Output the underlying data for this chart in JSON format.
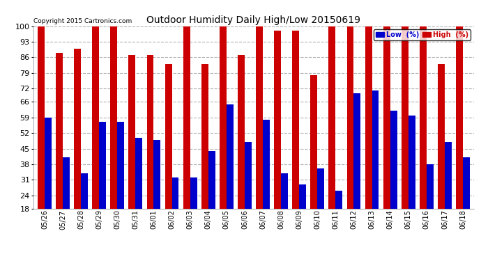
{
  "title": "Outdoor Humidity Daily High/Low 20150619",
  "copyright": "Copyright 2015 Cartronics.com",
  "background_color": "#ffffff",
  "plot_bg_color": "#ffffff",
  "legend_low_label": "Low  (%)",
  "legend_high_label": "High  (%)",
  "low_color": "#0000cc",
  "high_color": "#cc0000",
  "ylim": [
    18,
    100
  ],
  "yticks": [
    18,
    24,
    31,
    38,
    45,
    52,
    59,
    66,
    72,
    79,
    86,
    93,
    100
  ],
  "dates": [
    "05/26",
    "05/27",
    "05/28",
    "05/29",
    "05/30",
    "05/31",
    "06/01",
    "06/02",
    "06/03",
    "06/04",
    "06/05",
    "06/06",
    "06/07",
    "06/08",
    "06/09",
    "06/10",
    "06/11",
    "06/12",
    "06/13",
    "06/14",
    "06/15",
    "06/16",
    "06/17",
    "06/18"
  ],
  "high_values": [
    100,
    88,
    90,
    100,
    100,
    87,
    87,
    83,
    100,
    83,
    100,
    87,
    100,
    98,
    98,
    78,
    100,
    100,
    100,
    100,
    100,
    100,
    83,
    100
  ],
  "low_values": [
    59,
    41,
    34,
    57,
    57,
    50,
    49,
    32,
    32,
    44,
    65,
    48,
    58,
    34,
    29,
    36,
    26,
    70,
    71,
    62,
    60,
    38,
    48,
    41
  ]
}
